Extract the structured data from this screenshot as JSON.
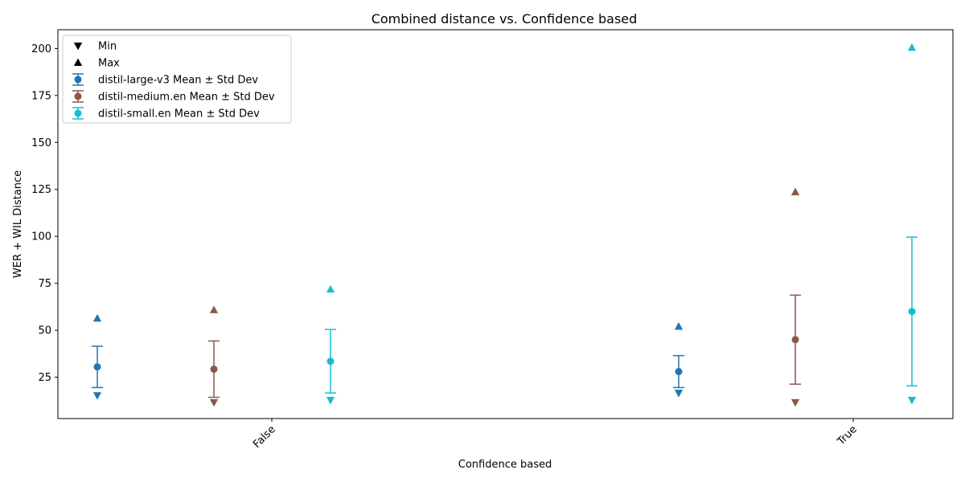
{
  "chart_data": {
    "type": "scatter",
    "title": "Combined distance vs. Confidence based",
    "xlabel": "Confidence based",
    "ylabel": "WER + WIL Distance",
    "categories": [
      "False",
      "True"
    ],
    "ylim": [
      3,
      210
    ],
    "yticks": [
      25,
      50,
      75,
      100,
      125,
      150,
      175,
      200
    ],
    "grid": false,
    "legend_position": "top-left",
    "legend": [
      {
        "label": "Min",
        "marker": "triangle-down",
        "color": "#000000"
      },
      {
        "label": "Max",
        "marker": "triangle-up",
        "color": "#000000"
      },
      {
        "label": "distil-large-v3 Mean ± Std Dev",
        "marker": "errorbar",
        "color": "#1f77b4"
      },
      {
        "label": "distil-medium.en Mean ± Std Dev",
        "marker": "errorbar",
        "color": "#8c564b"
      },
      {
        "label": "distil-small.en Mean ± Std Dev",
        "marker": "errorbar",
        "color": "#17becf"
      }
    ],
    "series": [
      {
        "name": "distil-large-v3",
        "color": "#1f77b4",
        "mean": [
          30.5,
          28.0
        ],
        "std": [
          11.0,
          8.5
        ],
        "min": [
          15.3,
          16.6
        ],
        "max": [
          56.3,
          52.0
        ]
      },
      {
        "name": "distil-medium.en",
        "color": "#8c564b",
        "mean": [
          29.3,
          45.0
        ],
        "std": [
          15.0,
          23.7
        ],
        "min": [
          11.6,
          11.6
        ],
        "max": [
          60.8,
          123.6
        ]
      },
      {
        "name": "distil-small.en",
        "color": "#17becf",
        "mean": [
          33.5,
          60.0
        ],
        "std": [
          16.9,
          39.6
        ],
        "min": [
          12.8,
          12.8
        ],
        "max": [
          71.8,
          200.5
        ]
      }
    ]
  }
}
